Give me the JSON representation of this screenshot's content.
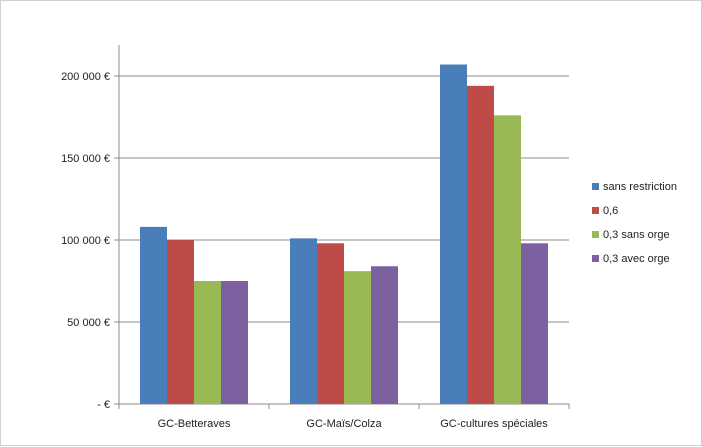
{
  "chart_data": {
    "type": "bar",
    "title": "",
    "xlabel": "",
    "ylabel": "",
    "categories": [
      "GC-Betteraves",
      "GC-Maïs/Colza",
      "GC-cultures spéciales"
    ],
    "series": [
      {
        "name": "sans restriction",
        "color": "#4a7ebb",
        "values": [
          108000,
          101000,
          207000
        ]
      },
      {
        "name": "0,6",
        "color": "#be4b48",
        "values": [
          100000,
          98000,
          194000
        ]
      },
      {
        "name": "0,3 sans orge",
        "color": "#98b954",
        "values": [
          75000,
          81000,
          176000
        ]
      },
      {
        "name": "0,3 avec orge",
        "color": "#7d60a0",
        "values": [
          75000,
          84000,
          98000
        ]
      }
    ],
    "ylim": [
      0,
      200000
    ],
    "yticks": [
      0,
      50000,
      100000,
      150000,
      200000
    ],
    "ytick_labels": [
      "- €",
      "50 000 €",
      "100 000 €",
      "150 000 €",
      "200 000 €"
    ],
    "grid": true,
    "legend_position": "right"
  }
}
